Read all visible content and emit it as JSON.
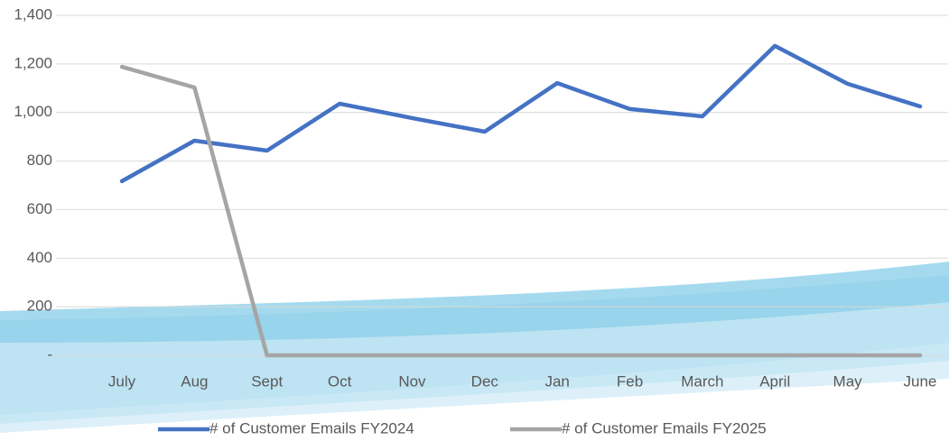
{
  "chart_data": {
    "type": "line",
    "categories": [
      "July",
      "Aug",
      "Sept",
      "Oct",
      "Nov",
      "Dec",
      "Jan",
      "Feb",
      "March",
      "April",
      "May",
      "June"
    ],
    "series": [
      {
        "name": "# of Customer Emails FY2024",
        "color": "#4472c4",
        "values": [
          717,
          884,
          843,
          1036,
          977,
          921,
          1121,
          1014,
          984,
          1274,
          1118,
          1025
        ]
      },
      {
        "name": "# of Customer Emails FY2025",
        "color": "#a5a5a5",
        "values": [
          1188,
          1103,
          0,
          0,
          0,
          0,
          0,
          0,
          0,
          0,
          0,
          0
        ]
      }
    ],
    "ylim": [
      0,
      1400
    ],
    "yticks": [
      {
        "value": 0,
        "label": "-"
      },
      200,
      400,
      600,
      800,
      {
        "value": 1000,
        "label": "1,000"
      },
      {
        "value": 1200,
        "label": "1,200"
      },
      {
        "value": 1400,
        "label": "1,400"
      }
    ],
    "grid": true,
    "legend": "bottom"
  }
}
